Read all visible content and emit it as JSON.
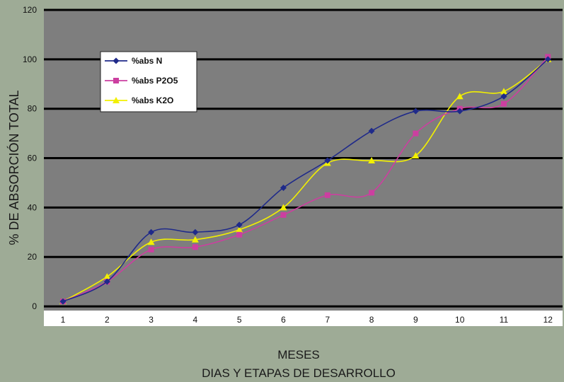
{
  "chart_data": {
    "type": "line",
    "title": "",
    "ylabel": "% DE ABSORCIÓN TOTAL",
    "xlabel_line1": "MESES",
    "xlabel_line2": "DIAS Y ETAPAS DE DESARROLLO",
    "categories": [
      "1",
      "2",
      "3",
      "4",
      "5",
      "6",
      "7",
      "8",
      "9",
      "10",
      "11",
      "12"
    ],
    "ylim": [
      -8,
      120
    ],
    "yticks": [
      0,
      20,
      40,
      60,
      80,
      100,
      120
    ],
    "grid": true,
    "legend_position": "top-left",
    "series": [
      {
        "name": "%abs N",
        "color": "#1f2a8a",
        "marker": "diamond",
        "values": [
          2,
          10,
          30,
          30,
          33,
          48,
          59,
          71,
          79,
          79,
          85,
          100
        ]
      },
      {
        "name": "%abs P2O5",
        "color": "#cc3fa0",
        "marker": "square",
        "values": [
          2,
          10,
          23,
          24,
          29,
          37,
          45,
          46,
          70,
          80,
          82,
          101
        ]
      },
      {
        "name": "%abs K2O",
        "color": "#f2f000",
        "marker": "triangle",
        "values": [
          2,
          12,
          26,
          27,
          31,
          40,
          58,
          59,
          61,
          85,
          87,
          100
        ]
      }
    ]
  }
}
